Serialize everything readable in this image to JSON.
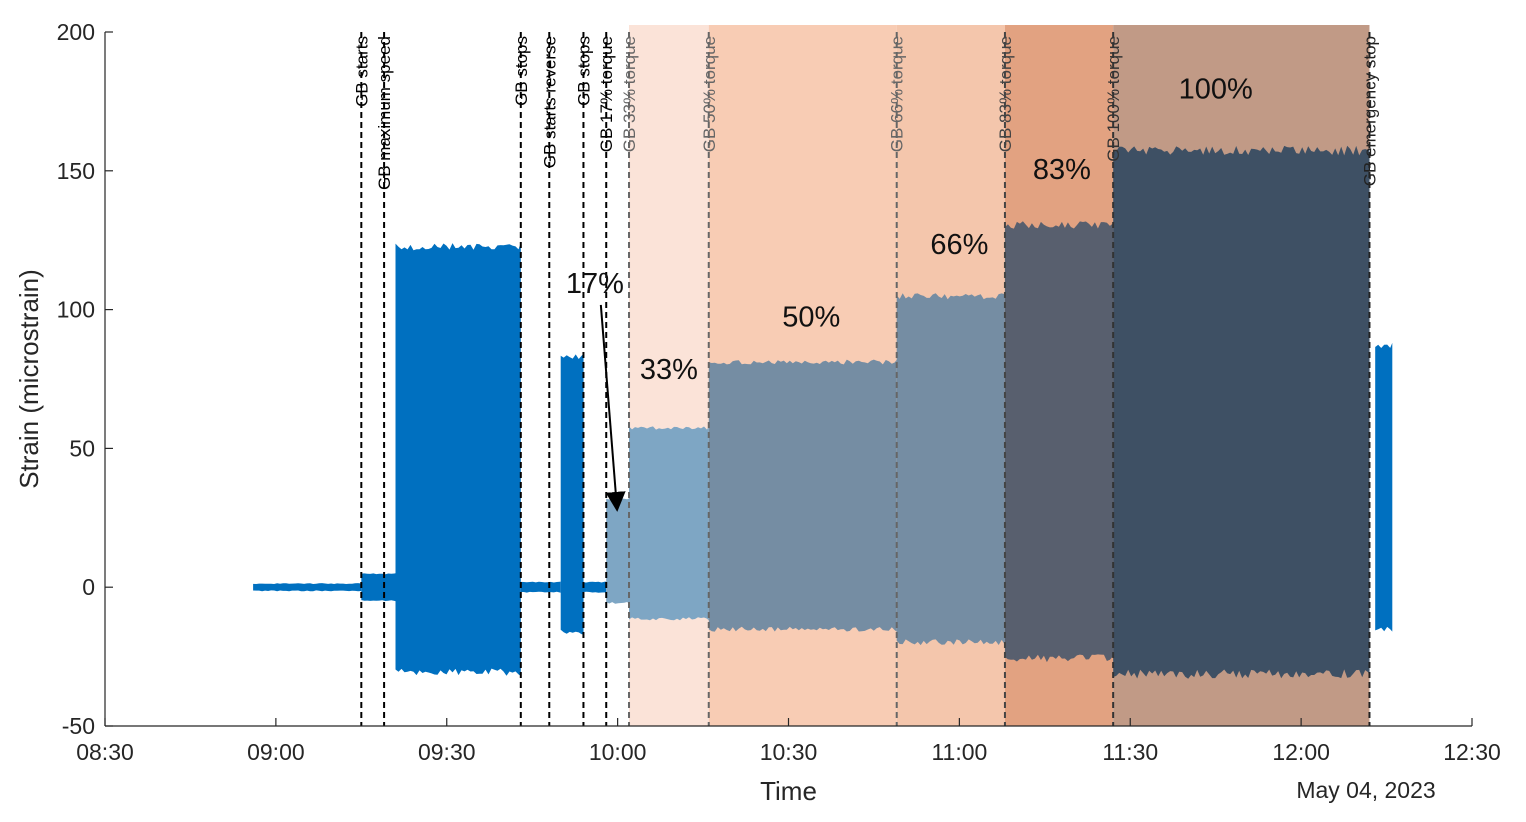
{
  "chart_data": {
    "type": "area",
    "xlabel": "Time",
    "ylabel": "Strain (microstrain)",
    "date_label": "May 04, 2023",
    "x_range": [
      "08:30",
      "12:30"
    ],
    "ylim": [
      -50,
      200
    ],
    "x_ticks": [
      "08:30",
      "09:00",
      "09:30",
      "10:00",
      "10:30",
      "11:00",
      "11:30",
      "12:00",
      "12:30"
    ],
    "y_ticks": [
      -50,
      0,
      50,
      100,
      150,
      200
    ],
    "grid": false,
    "torque_regions": [
      {
        "start": "10:02",
        "end": "10:16",
        "color": "#fbe3d8"
      },
      {
        "start": "10:16",
        "end": "10:49",
        "color": "#f8ccb4"
      },
      {
        "start": "10:49",
        "end": "11:08",
        "color": "#f4c6ac"
      },
      {
        "start": "11:08",
        "end": "11:27",
        "color": "#e2a281"
      },
      {
        "start": "11:27",
        "end": "12:12",
        "color": "#c19a86"
      }
    ],
    "signal_segments": [
      {
        "start": "08:56",
        "end": "09:15",
        "max": 1.5,
        "min": -1.5,
        "color": "#0070c0"
      },
      {
        "start": "09:15",
        "end": "09:21",
        "max": 5,
        "min": -5,
        "color": "#0070c0"
      },
      {
        "start": "09:21",
        "end": "09:43",
        "max": 124,
        "min": -32,
        "color": "#0070c0"
      },
      {
        "start": "09:43",
        "end": "09:50",
        "max": 2,
        "min": -2,
        "color": "#0070c0"
      },
      {
        "start": "09:50",
        "end": "09:54",
        "max": 84,
        "min": -17,
        "color": "#0070c0"
      },
      {
        "start": "09:54",
        "end": "09:58",
        "max": 2,
        "min": -2,
        "color": "#0070c0"
      },
      {
        "start": "09:58",
        "end": "10:02",
        "max": 32,
        "min": -6,
        "color": "#7ea6c4"
      },
      {
        "start": "10:02",
        "end": "10:16",
        "max": 58,
        "min": -12,
        "color": "#7ea6c4"
      },
      {
        "start": "10:16",
        "end": "10:49",
        "max": 82,
        "min": -16,
        "color": "#758da3"
      },
      {
        "start": "10:49",
        "end": "11:08",
        "max": 106,
        "min": -21,
        "color": "#758da3"
      },
      {
        "start": "11:08",
        "end": "11:27",
        "max": 132,
        "min": -27,
        "color": "#585f6e"
      },
      {
        "start": "11:27",
        "end": "12:12",
        "max": 159,
        "min": -33,
        "color": "#3e5064"
      },
      {
        "start": "12:13",
        "end": "12:16",
        "max": 88,
        "min": -16,
        "color": "#0070c0"
      }
    ],
    "events": [
      {
        "time": "09:15",
        "label": "GB starts",
        "color": "#000000"
      },
      {
        "time": "09:19",
        "label": "GB maximum speed",
        "color": "#000000"
      },
      {
        "time": "09:43",
        "label": "GB stops",
        "color": "#000000"
      },
      {
        "time": "09:48",
        "label": "GB starts reverse",
        "color": "#000000"
      },
      {
        "time": "09:54",
        "label": "GB stops",
        "color": "#000000"
      },
      {
        "time": "09:58",
        "label": "GB 17% torque",
        "color": "#000000"
      },
      {
        "time": "10:02",
        "label": "GB 33% torque",
        "color": "#666666"
      },
      {
        "time": "10:16",
        "label": "GB 50% torque",
        "color": "#666666"
      },
      {
        "time": "10:49",
        "label": "GB 66% torque",
        "color": "#666666"
      },
      {
        "time": "11:08",
        "label": "GB 83% torque",
        "color": "#444444"
      },
      {
        "time": "11:27",
        "label": "GB 100% torque",
        "color": "#333333"
      },
      {
        "time": "12:12",
        "label": "GB emergency stop",
        "color": "#222222"
      }
    ],
    "annotations": [
      {
        "label": "17%",
        "time": "09:56",
        "strain": 106,
        "arrow_to": {
          "time": "10:00",
          "strain": 30
        }
      },
      {
        "label": "33%",
        "time": "10:09",
        "strain": 75
      },
      {
        "label": "50%",
        "time": "10:34",
        "strain": 94
      },
      {
        "label": "66%",
        "time": "11:00",
        "strain": 120
      },
      {
        "label": "83%",
        "time": "11:18",
        "strain": 147
      },
      {
        "label": "100%",
        "time": "11:45",
        "strain": 176
      }
    ]
  }
}
